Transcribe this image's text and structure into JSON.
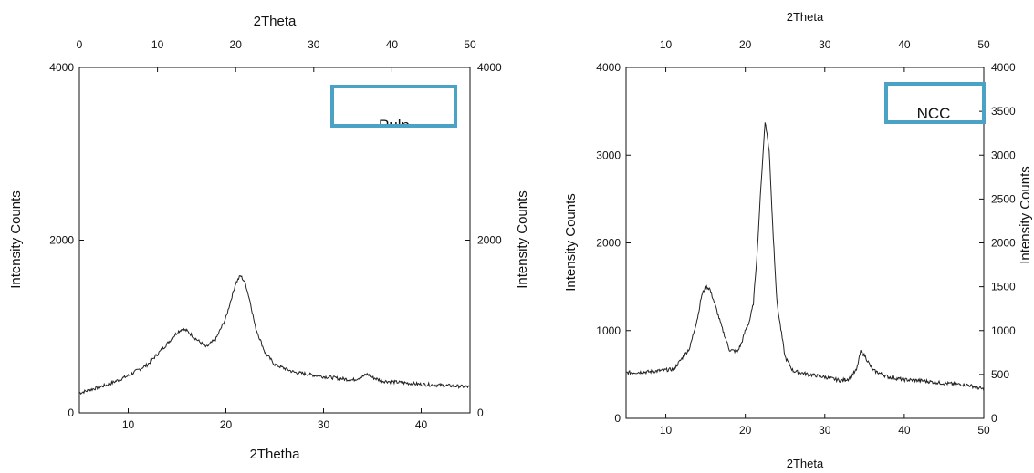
{
  "chart_data": [
    {
      "type": "line",
      "legend": "Pulp",
      "top_xlabel": "2Theta",
      "xlabel": "2Thetha",
      "ylabel": "Intensity Counts",
      "ylabel_right": "Intensity Counts",
      "xlim": [
        5,
        45
      ],
      "top_xlim": [
        0,
        50
      ],
      "ylim": [
        0,
        4000
      ],
      "xticks": [
        10,
        20,
        30,
        40
      ],
      "top_xticks": [
        0,
        10,
        20,
        30,
        40,
        50
      ],
      "yticks": [
        0,
        2000,
        4000
      ],
      "yticks_right": [
        0,
        2000,
        4000
      ],
      "color": "#222222",
      "legend_box_color": "#4aa3c4",
      "x": [
        5,
        8,
        10,
        12,
        13,
        14,
        15,
        15.5,
        16,
        17,
        18,
        19,
        20,
        20.5,
        21,
        21.5,
        22,
        22.5,
        23,
        24,
        25,
        27,
        30,
        33,
        34,
        34.5,
        35,
        36,
        38,
        40,
        42,
        45
      ],
      "y": [
        230,
        330,
        430,
        560,
        680,
        800,
        930,
        970,
        950,
        850,
        760,
        860,
        1100,
        1300,
        1500,
        1590,
        1500,
        1280,
        1000,
        700,
        560,
        470,
        420,
        380,
        420,
        450,
        410,
        370,
        350,
        330,
        320,
        300
      ]
    },
    {
      "type": "line",
      "legend": "NCC",
      "top_xlabel": "2Theta",
      "xlabel": "2Theta",
      "ylabel": "Intensity Counts",
      "ylabel_right": "Intensity Counts",
      "xlim": [
        5,
        50
      ],
      "top_xlim": [
        5,
        50
      ],
      "ylim": [
        0,
        4000
      ],
      "xticks": [
        10,
        20,
        30,
        40,
        50
      ],
      "top_xticks": [
        10,
        20,
        30,
        40,
        50
      ],
      "yticks": [
        0,
        1000,
        2000,
        3000,
        4000
      ],
      "yticks_right": [
        0,
        500,
        1000,
        1500,
        2000,
        2500,
        3000,
        3500,
        4000
      ],
      "color": "#222222",
      "legend_box_color": "#4aa3c4",
      "x": [
        5,
        8,
        11,
        13,
        14,
        14.5,
        15,
        15.5,
        16,
        17,
        18,
        19,
        19.5,
        20,
        20.5,
        21,
        21.5,
        22,
        22.5,
        23,
        23.5,
        24,
        25,
        26,
        28,
        30,
        32,
        33,
        34,
        34.5,
        35,
        36,
        38,
        40,
        42,
        45,
        48,
        50
      ],
      "y": [
        520,
        530,
        560,
        800,
        1150,
        1400,
        1500,
        1480,
        1350,
        1050,
        780,
        760,
        850,
        1000,
        1100,
        1300,
        1900,
        2700,
        3400,
        3050,
        2100,
        1300,
        700,
        540,
        500,
        470,
        430,
        450,
        550,
        760,
        720,
        550,
        470,
        440,
        430,
        400,
        380,
        330
      ]
    }
  ]
}
